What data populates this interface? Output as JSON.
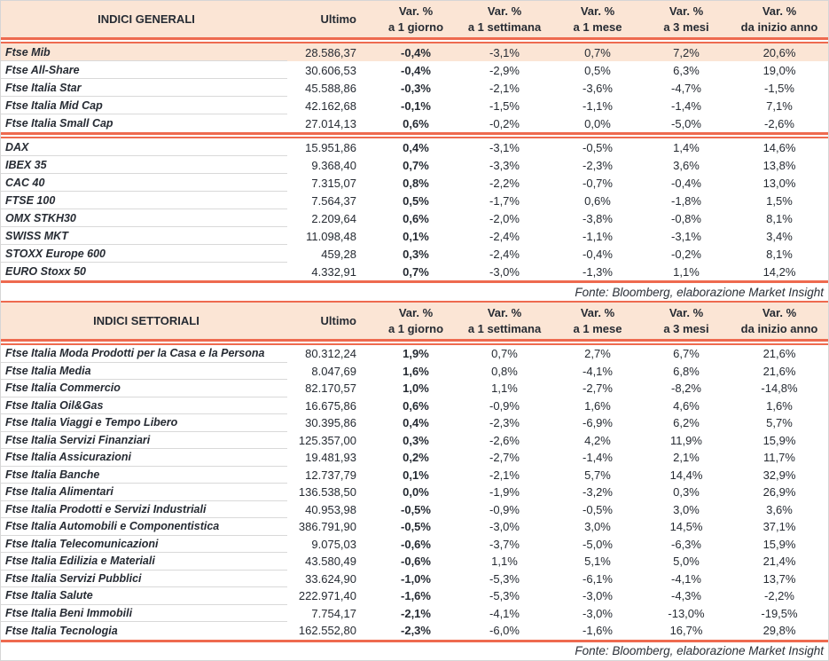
{
  "generali": {
    "title": "INDICI GENERALI",
    "ultimo_header": "Ultimo",
    "var_headers": [
      [
        "Var. %",
        "a 1 giorno"
      ],
      [
        "Var. %",
        "a 1 settimana"
      ],
      [
        "Var. %",
        "a 1 mese"
      ],
      [
        "Var. %",
        "a 3 mesi"
      ],
      [
        "Var. %",
        "da inizio anno"
      ]
    ],
    "rows": [
      {
        "name": "Ftse Mib",
        "ultimo": "28.586,37",
        "vars": [
          "-0,4%",
          "-3,1%",
          "0,7%",
          "7,2%",
          "20,6%"
        ],
        "highlight": true
      },
      {
        "name": "Ftse All-Share",
        "ultimo": "30.606,53",
        "vars": [
          "-0,4%",
          "-2,9%",
          "0,5%",
          "6,3%",
          "19,0%"
        ]
      },
      {
        "name": "Ftse Italia Star",
        "ultimo": "45.588,86",
        "vars": [
          "-0,3%",
          "-2,1%",
          "-3,6%",
          "-4,7%",
          "-1,5%"
        ]
      },
      {
        "name": "Ftse Italia Mid Cap",
        "ultimo": "42.162,68",
        "vars": [
          "-0,1%",
          "-1,5%",
          "-1,1%",
          "-1,4%",
          "7,1%"
        ]
      },
      {
        "name": "Ftse Italia Small Cap",
        "ultimo": "27.014,13",
        "vars": [
          "0,6%",
          "-0,2%",
          "0,0%",
          "-5,0%",
          "-2,6%"
        ],
        "divider_after": true
      },
      {
        "name": "DAX",
        "ultimo": "15.951,86",
        "vars": [
          "0,4%",
          "-3,1%",
          "-0,5%",
          "1,4%",
          "14,6%"
        ]
      },
      {
        "name": "IBEX 35",
        "ultimo": "9.368,40",
        "vars": [
          "0,7%",
          "-3,3%",
          "-2,3%",
          "3,6%",
          "13,8%"
        ]
      },
      {
        "name": "CAC 40",
        "ultimo": "7.315,07",
        "vars": [
          "0,8%",
          "-2,2%",
          "-0,7%",
          "-0,4%",
          "13,0%"
        ]
      },
      {
        "name": "FTSE 100",
        "ultimo": "7.564,37",
        "vars": [
          "0,5%",
          "-1,7%",
          "0,6%",
          "-1,8%",
          "1,5%"
        ]
      },
      {
        "name": "OMX STKH30",
        "ultimo": "2.209,64",
        "vars": [
          "0,6%",
          "-2,0%",
          "-3,8%",
          "-0,8%",
          "8,1%"
        ]
      },
      {
        "name": "SWISS MKT",
        "ultimo": "11.098,48",
        "vars": [
          "0,1%",
          "-2,4%",
          "-1,1%",
          "-3,1%",
          "3,4%"
        ]
      },
      {
        "name": "STOXX Europe 600",
        "ultimo": "459,28",
        "vars": [
          "0,3%",
          "-2,4%",
          "-0,4%",
          "-0,2%",
          "8,1%"
        ]
      },
      {
        "name": "EURO Stoxx 50",
        "ultimo": "4.332,91",
        "vars": [
          "0,7%",
          "-3,0%",
          "-1,3%",
          "1,1%",
          "14,2%"
        ]
      }
    ],
    "fonte": "Fonte: Bloomberg, elaborazione Market Insight"
  },
  "settoriali": {
    "title": "INDICI SETTORIALI",
    "ultimo_header": "Ultimo",
    "var_headers": [
      [
        "Var. %",
        "a 1 giorno"
      ],
      [
        "Var. %",
        "a 1 settimana"
      ],
      [
        "Var. %",
        "a 1 mese"
      ],
      [
        "Var. %",
        "a 3 mesi"
      ],
      [
        "Var. %",
        "da inizio anno"
      ]
    ],
    "rows": [
      {
        "name": "Ftse Italia Moda Prodotti per la Casa e la Persona",
        "ultimo": "80.312,24",
        "vars": [
          "1,9%",
          "0,7%",
          "2,7%",
          "6,7%",
          "21,6%"
        ]
      },
      {
        "name": "Ftse Italia Media",
        "ultimo": "8.047,69",
        "vars": [
          "1,6%",
          "0,8%",
          "-4,1%",
          "6,8%",
          "21,6%"
        ]
      },
      {
        "name": "Ftse Italia Commercio",
        "ultimo": "82.170,57",
        "vars": [
          "1,0%",
          "1,1%",
          "-2,7%",
          "-8,2%",
          "-14,8%"
        ]
      },
      {
        "name": "Ftse Italia Oil&Gas",
        "ultimo": "16.675,86",
        "vars": [
          "0,6%",
          "-0,9%",
          "1,6%",
          "4,6%",
          "1,6%"
        ]
      },
      {
        "name": "Ftse Italia Viaggi e Tempo Libero",
        "ultimo": "30.395,86",
        "vars": [
          "0,4%",
          "-2,3%",
          "-6,9%",
          "6,2%",
          "5,7%"
        ]
      },
      {
        "name": "Ftse Italia Servizi Finanziari",
        "ultimo": "125.357,00",
        "vars": [
          "0,3%",
          "-2,6%",
          "4,2%",
          "11,9%",
          "15,9%"
        ]
      },
      {
        "name": "Ftse Italia Assicurazioni",
        "ultimo": "19.481,93",
        "vars": [
          "0,2%",
          "-2,7%",
          "-1,4%",
          "2,1%",
          "11,7%"
        ]
      },
      {
        "name": "Ftse Italia Banche",
        "ultimo": "12.737,79",
        "vars": [
          "0,1%",
          "-2,1%",
          "5,7%",
          "14,4%",
          "32,9%"
        ]
      },
      {
        "name": "Ftse Italia Alimentari",
        "ultimo": "136.538,50",
        "vars": [
          "0,0%",
          "-1,9%",
          "-3,2%",
          "0,3%",
          "26,9%"
        ]
      },
      {
        "name": "Ftse Italia Prodotti e Servizi Industriali",
        "ultimo": "40.953,98",
        "vars": [
          "-0,5%",
          "-0,9%",
          "-0,5%",
          "3,0%",
          "3,6%"
        ]
      },
      {
        "name": "Ftse Italia Automobili e Componentistica",
        "ultimo": "386.791,90",
        "vars": [
          "-0,5%",
          "-3,0%",
          "3,0%",
          "14,5%",
          "37,1%"
        ]
      },
      {
        "name": "Ftse Italia Telecomunicazioni",
        "ultimo": "9.075,03",
        "vars": [
          "-0,6%",
          "-3,7%",
          "-5,0%",
          "-6,3%",
          "15,9%"
        ]
      },
      {
        "name": "Ftse Italia Edilizia e Materiali",
        "ultimo": "43.580,49",
        "vars": [
          "-0,6%",
          "1,1%",
          "5,1%",
          "5,0%",
          "21,4%"
        ]
      },
      {
        "name": "Ftse Italia Servizi Pubblici",
        "ultimo": "33.624,90",
        "vars": [
          "-1,0%",
          "-5,3%",
          "-6,1%",
          "-4,1%",
          "13,7%"
        ]
      },
      {
        "name": "Ftse Italia Salute",
        "ultimo": "222.971,40",
        "vars": [
          "-1,6%",
          "-5,3%",
          "-3,0%",
          "-4,3%",
          "-2,2%"
        ]
      },
      {
        "name": "Ftse Italia Beni Immobili",
        "ultimo": "7.754,17",
        "vars": [
          "-2,1%",
          "-4,1%",
          "-3,0%",
          "-13,0%",
          "-19,5%"
        ]
      },
      {
        "name": "Ftse Italia Tecnologia",
        "ultimo": "162.552,80",
        "vars": [
          "-2,3%",
          "-6,0%",
          "-1,6%",
          "16,7%",
          "29,8%"
        ]
      }
    ],
    "fonte": "Fonte: Bloomberg, elaborazione Market Insight"
  },
  "colors": {
    "accent_coral": "#ee6a4f",
    "header_peach": "#fbe5d5",
    "text_ink": "#262b33"
  }
}
